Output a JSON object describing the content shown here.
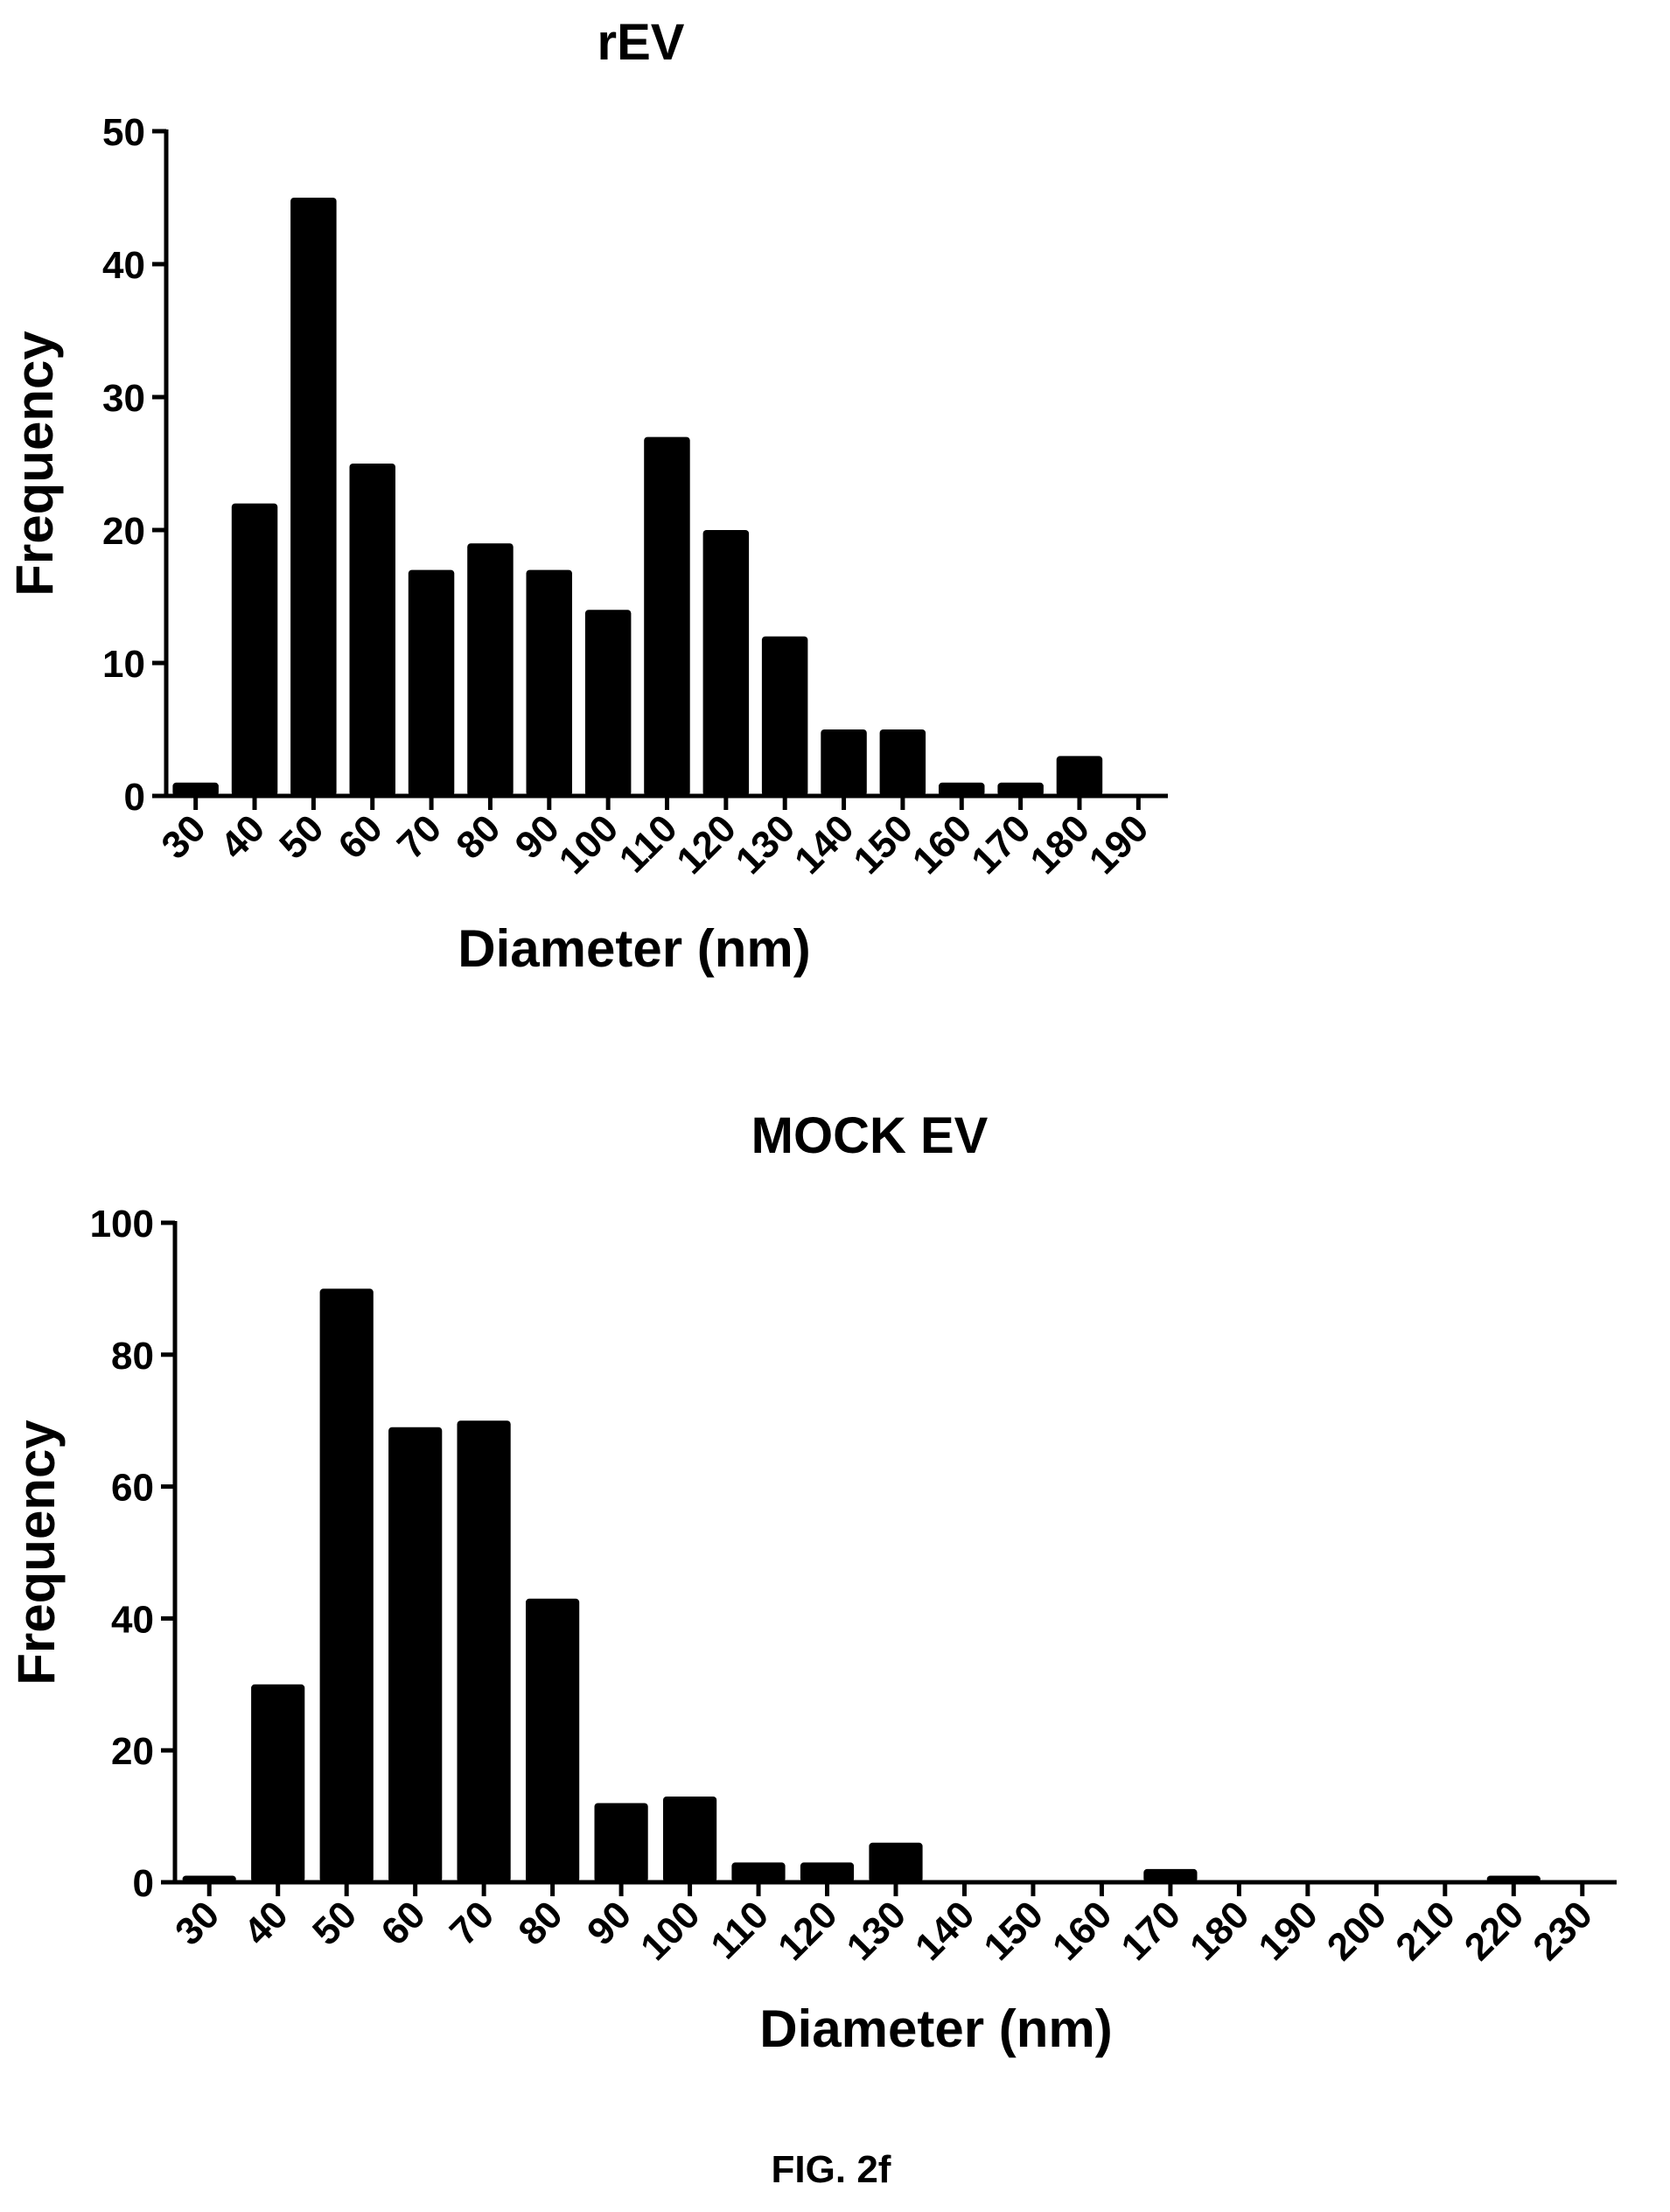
{
  "figure_caption": "FIG. 2f",
  "chart_data": [
    {
      "type": "bar",
      "title": "rEV",
      "xlabel": "Diameter (nm)",
      "ylabel": "Frequency",
      "categories": [
        "30",
        "40",
        "50",
        "60",
        "70",
        "80",
        "90",
        "100",
        "110",
        "120",
        "130",
        "140",
        "150",
        "160",
        "170",
        "180",
        "190"
      ],
      "values": [
        1,
        22,
        45,
        25,
        17,
        19,
        17,
        14,
        27,
        20,
        12,
        5,
        5,
        1,
        1,
        3,
        0
      ],
      "ylim": [
        0,
        50
      ],
      "yticks": [
        0,
        10,
        20,
        30,
        40,
        50
      ],
      "grid": false,
      "color": "#000000"
    },
    {
      "type": "bar",
      "title": "MOCK EV",
      "xlabel": "Diameter (nm)",
      "ylabel": "Frequency",
      "categories": [
        "30",
        "40",
        "50",
        "60",
        "70",
        "80",
        "90",
        "100",
        "110",
        "120",
        "130",
        "140",
        "150",
        "160",
        "170",
        "180",
        "190",
        "200",
        "210",
        "220",
        "230"
      ],
      "values": [
        1,
        30,
        90,
        69,
        70,
        43,
        12,
        13,
        3,
        3,
        6,
        0,
        0,
        0,
        2,
        0,
        0,
        0,
        0,
        1,
        0
      ],
      "ylim": [
        0,
        100
      ],
      "yticks": [
        0,
        20,
        40,
        60,
        80,
        100
      ],
      "grid": false,
      "color": "#000000"
    }
  ]
}
